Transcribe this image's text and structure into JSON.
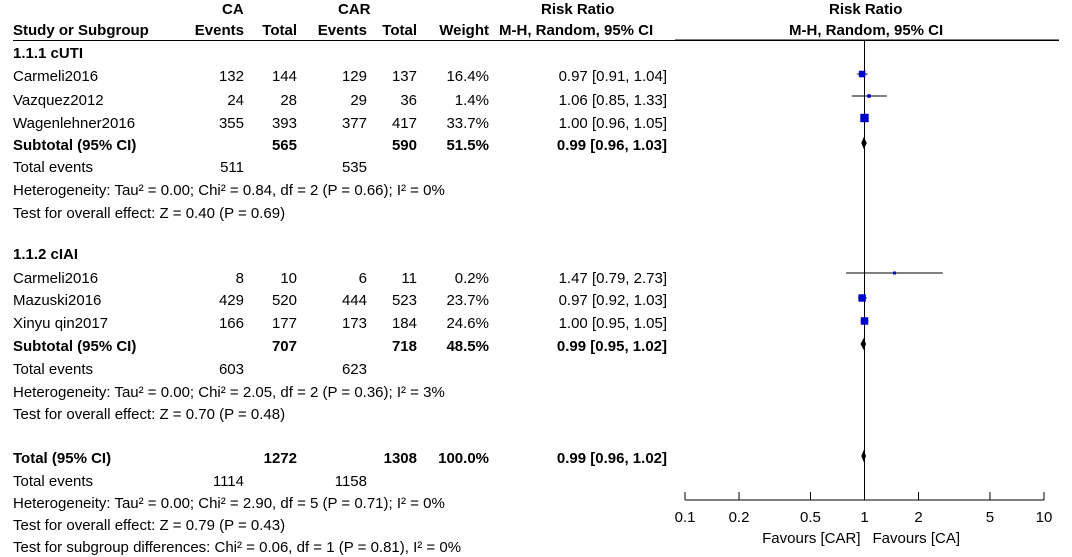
{
  "header": {
    "group_ca": "CA",
    "group_car": "CAR",
    "risk_ratio_title": "Risk Ratio",
    "plot_title": "Risk Ratio",
    "study_col": "Study or Subgroup",
    "events_ca": "Events",
    "total_ca": "Total",
    "events_car": "Events",
    "total_car": "Total",
    "weight": "Weight",
    "method": "M-H, Random, 95% CI",
    "plot_method": "M-H, Random, 95% CI"
  },
  "subgroups": [
    {
      "title": "1.1.1 cUTI",
      "studies": [
        {
          "name": "Carmeli2016",
          "ca_events": "132",
          "ca_total": "144",
          "car_events": "129",
          "car_total": "137",
          "weight": "16.4%",
          "ci": "0.97 [0.91, 1.04]"
        },
        {
          "name": "Vazquez2012",
          "ca_events": "24",
          "ca_total": "28",
          "car_events": "29",
          "car_total": "36",
          "weight": "1.4%",
          "ci": "1.06 [0.85, 1.33]"
        },
        {
          "name": "Wagenlehner2016",
          "ca_events": "355",
          "ca_total": "393",
          "car_events": "377",
          "car_total": "417",
          "weight": "33.7%",
          "ci": "1.00 [0.96, 1.05]"
        }
      ],
      "subtotal": {
        "label": "Subtotal (95% CI)",
        "ca_total": "565",
        "car_total": "590",
        "weight": "51.5%",
        "ci": "0.99 [0.96, 1.03]"
      },
      "total_events": {
        "label": "Total events",
        "ca": "511",
        "car": "535"
      },
      "heterogeneity": "Heterogeneity: Tau² = 0.00; Chi² = 0.84, df = 2 (P = 0.66); I² = 0%",
      "overall_effect": "Test for overall effect: Z = 0.40 (P = 0.69)"
    },
    {
      "title": "1.1.2 cIAI",
      "studies": [
        {
          "name": "Carmeli2016",
          "ca_events": "8",
          "ca_total": "10",
          "car_events": "6",
          "car_total": "11",
          "weight": "0.2%",
          "ci": "1.47 [0.79, 2.73]"
        },
        {
          "name": "Mazuski2016",
          "ca_events": "429",
          "ca_total": "520",
          "car_events": "444",
          "car_total": "523",
          "weight": "23.7%",
          "ci": "0.97 [0.92, 1.03]"
        },
        {
          "name": "Xinyu qin2017",
          "ca_events": "166",
          "ca_total": "177",
          "car_events": "173",
          "car_total": "184",
          "weight": "24.6%",
          "ci": "1.00 [0.95, 1.05]"
        }
      ],
      "subtotal": {
        "label": "Subtotal (95% CI)",
        "ca_total": "707",
        "car_total": "718",
        "weight": "48.5%",
        "ci": "0.99 [0.95, 1.02]"
      },
      "total_events": {
        "label": "Total events",
        "ca": "603",
        "car": "623"
      },
      "heterogeneity": "Heterogeneity: Tau² = 0.00; Chi² = 2.05, df = 2 (P = 0.36); I² = 3%",
      "overall_effect": "Test for overall effect: Z = 0.70 (P = 0.48)"
    }
  ],
  "overall": {
    "label": "Total (95% CI)",
    "ca_total": "1272",
    "car_total": "1308",
    "weight": "100.0%",
    "ci": "0.99 [0.96, 1.02]",
    "total_events": {
      "label": "Total events",
      "ca": "1114",
      "car": "1158"
    },
    "heterogeneity": "Heterogeneity: Tau² = 0.00; Chi² = 2.90, df = 5 (P = 0.71); I² = 0%",
    "overall_effect": "Test for overall effect: Z = 0.79 (P = 0.43)",
    "subgroup_diff": "Test for subgroup differences: Chi² = 0.06, df = 1 (P = 0.81), I² = 0%"
  },
  "axis": {
    "favours_left": "Favours [CAR]",
    "favours_right": "Favours [CA]"
  },
  "chart_data": {
    "type": "scatter",
    "scale": "log",
    "xlim": [
      0.1,
      10
    ],
    "ticks": [
      0.1,
      0.2,
      0.5,
      1,
      2,
      5,
      10
    ],
    "tick_labels": [
      "0.1",
      "0.2",
      "0.5",
      "1",
      "2",
      "5",
      "10"
    ],
    "marker_color": "#0000cc",
    "studies": [
      {
        "rr": 0.97,
        "lo": 0.91,
        "hi": 1.04,
        "weight": 16.4
      },
      {
        "rr": 1.06,
        "lo": 0.85,
        "hi": 1.33,
        "weight": 1.4
      },
      {
        "rr": 1.0,
        "lo": 0.96,
        "hi": 1.05,
        "weight": 33.7
      },
      {
        "rr": 1.47,
        "lo": 0.79,
        "hi": 2.73,
        "weight": 0.2
      },
      {
        "rr": 0.97,
        "lo": 0.92,
        "hi": 1.03,
        "weight": 23.7
      },
      {
        "rr": 1.0,
        "lo": 0.95,
        "hi": 1.05,
        "weight": 24.6
      }
    ],
    "diamonds": [
      {
        "rr": 0.99,
        "lo": 0.96,
        "hi": 1.03
      },
      {
        "rr": 0.99,
        "lo": 0.95,
        "hi": 1.02
      },
      {
        "rr": 0.99,
        "lo": 0.96,
        "hi": 1.02
      }
    ]
  }
}
